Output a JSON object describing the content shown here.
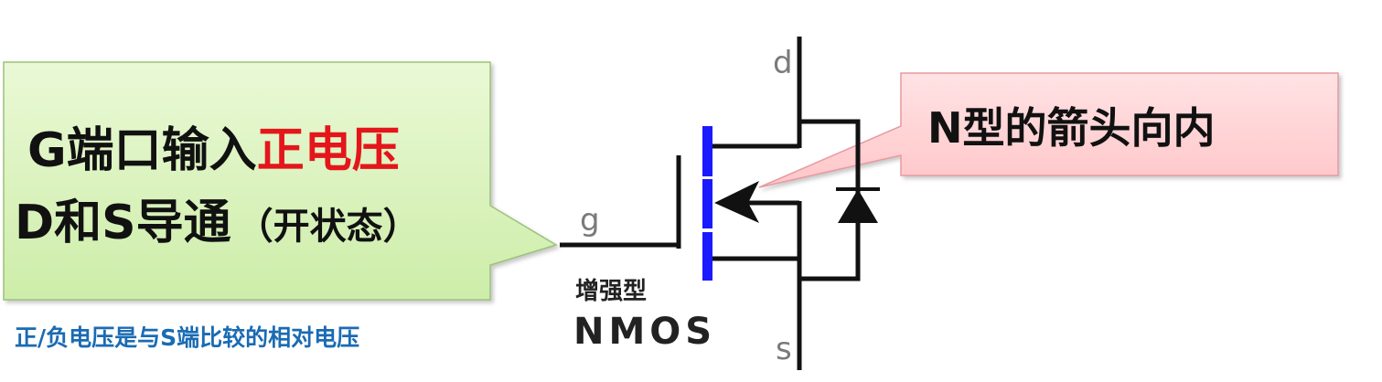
{
  "left_bubble": {
    "line1_prefix": "G端口输入",
    "line1_highlight": "正电压",
    "line2_main": "D和S导通",
    "line2_paren": "（开状态）",
    "bg_color": "#dff5c4",
    "highlight_color": "#e4161b"
  },
  "right_bubble": {
    "text": "N型的箭头向内",
    "bg_color": "#ffd6d8"
  },
  "note": {
    "text": "正/负电压是与S端比较的相对电压",
    "color": "#1a6bb3"
  },
  "circuit": {
    "pin_d": "d",
    "pin_g": "g",
    "pin_s": "s",
    "type_label": "增强型",
    "device_label": "NMOS",
    "channel_color": "#1a1aff",
    "wire_color": "#111111"
  }
}
